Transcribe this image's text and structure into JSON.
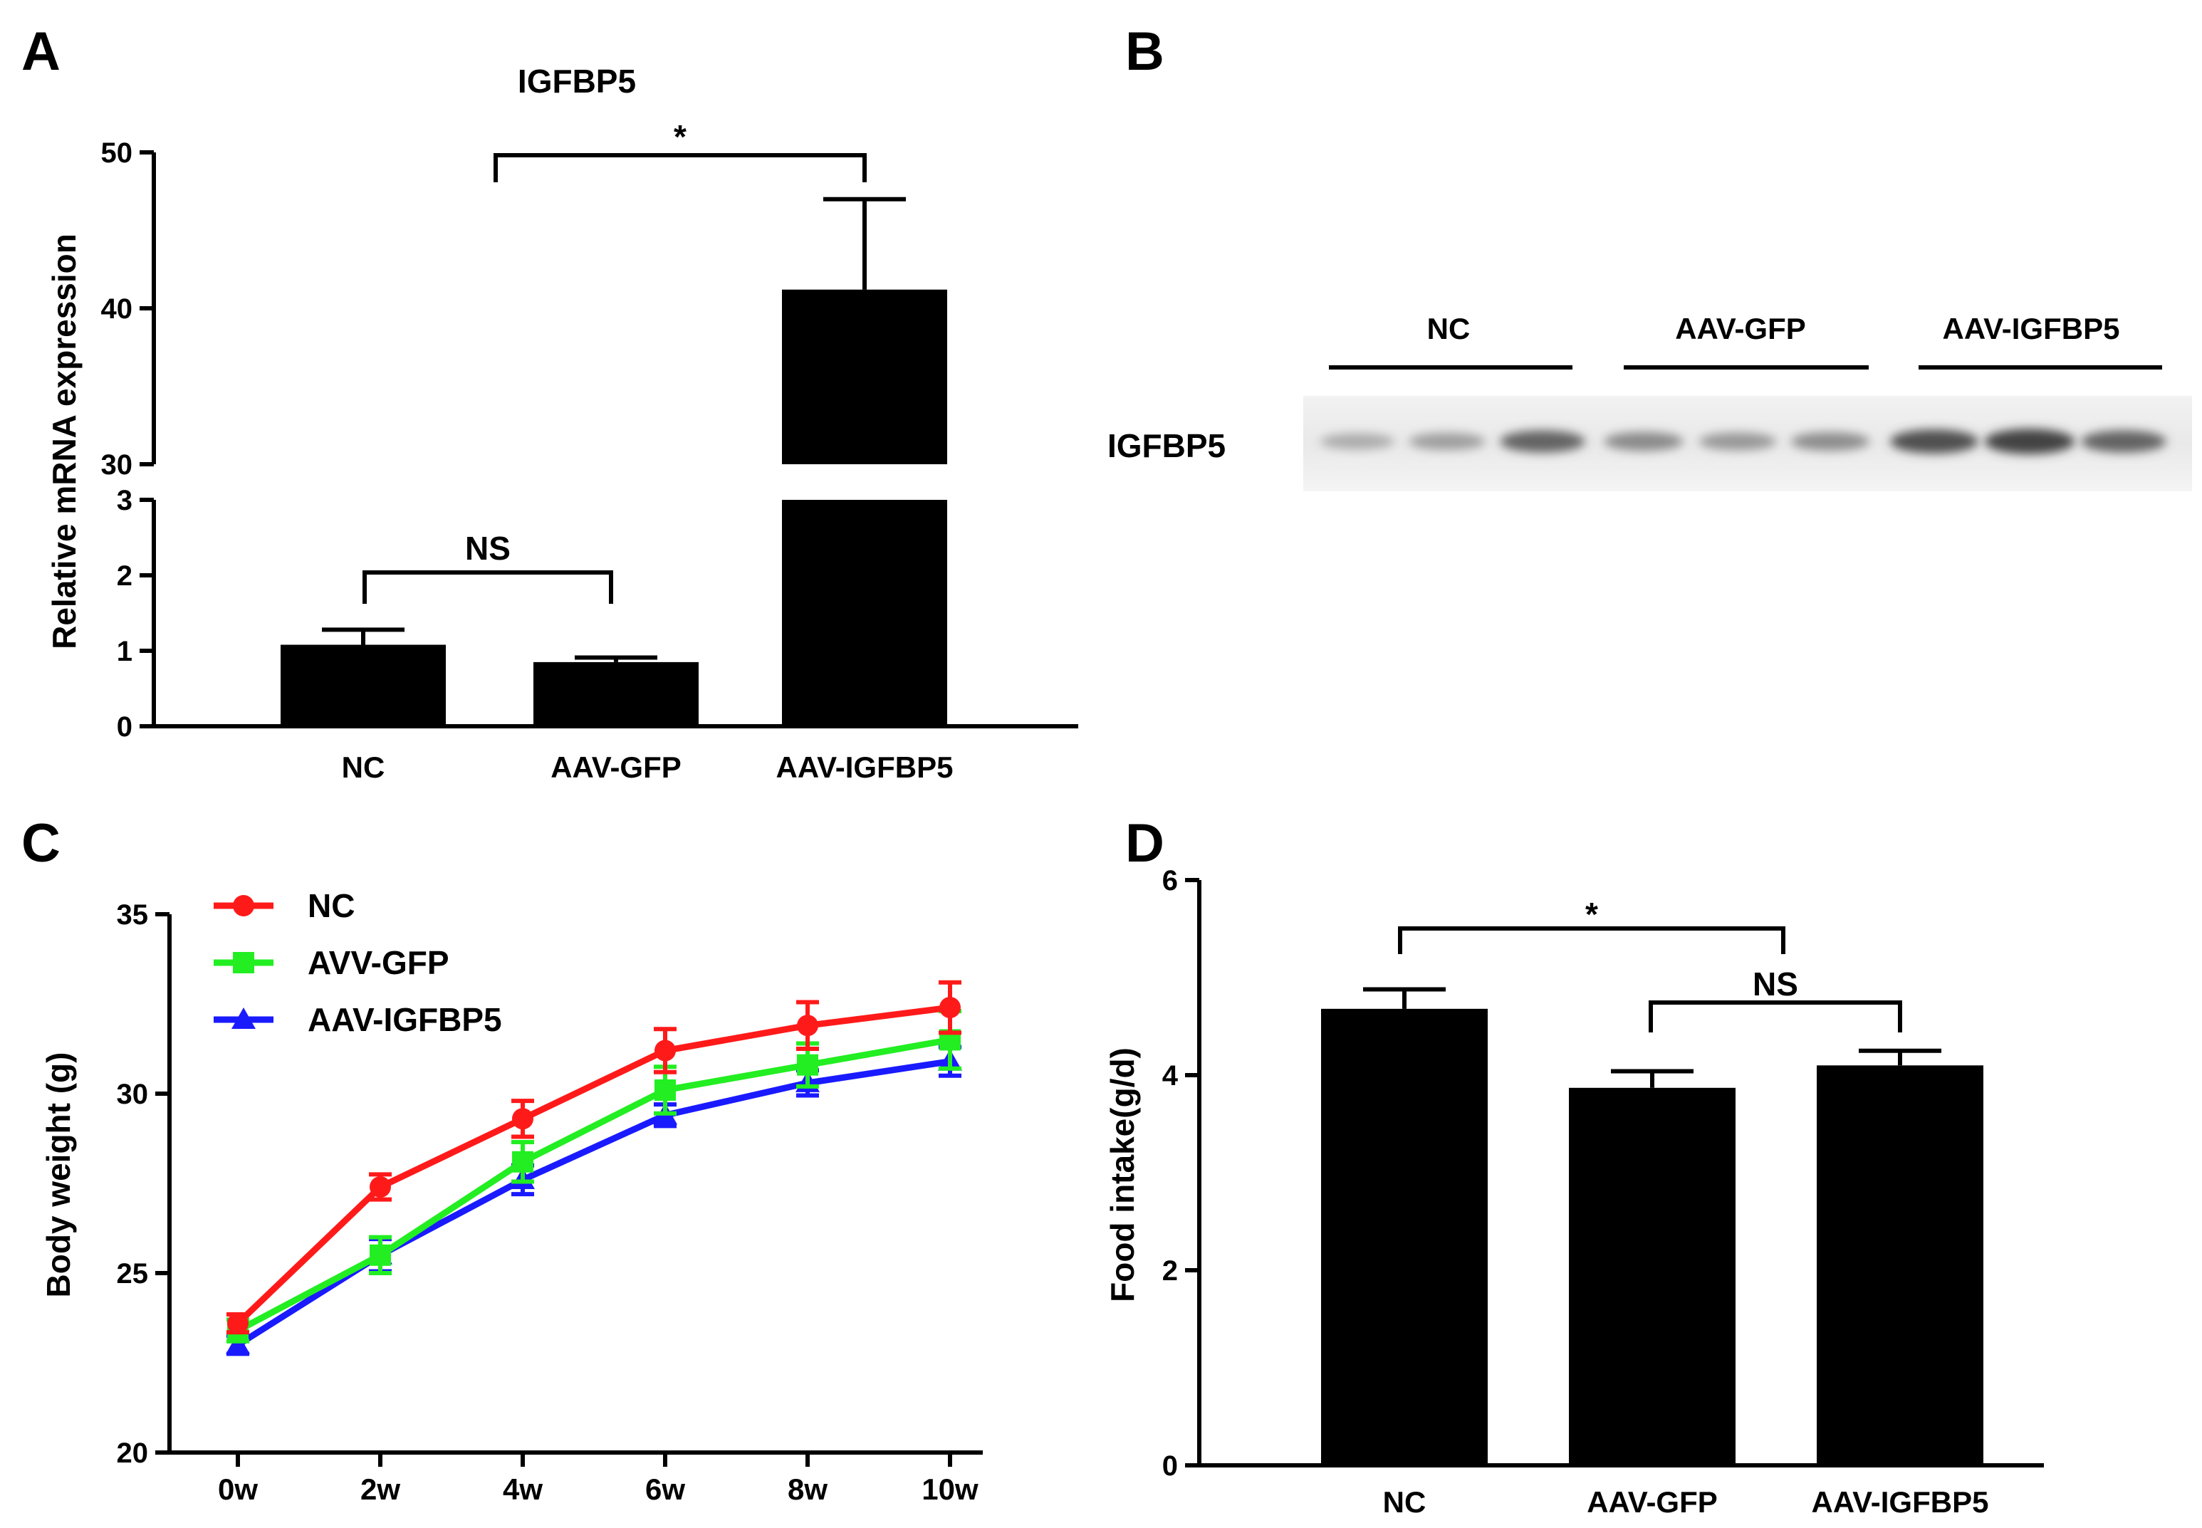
{
  "panels": {
    "A": "A",
    "B": "B",
    "C": "C",
    "D": "D"
  },
  "chart_data": [
    {
      "id": "A",
      "type": "bar",
      "title": "IGFBP5",
      "xlabel": "",
      "ylabel": "Relative mRNA expression",
      "categories": [
        "NC",
        "AAV-GFP",
        "AAV-IGFBP5"
      ],
      "values": [
        1.08,
        0.85,
        41.2
      ],
      "errors": [
        0.2,
        0.06,
        5.8
      ],
      "axis_break": {
        "lower": [
          0,
          3
        ],
        "upper": [
          30,
          50
        ]
      },
      "yticks_lower": [
        0,
        1,
        2,
        3
      ],
      "yticks_upper": [
        30,
        40,
        50
      ],
      "comparisons": [
        {
          "from": 0,
          "to": 1,
          "label": "NS"
        },
        {
          "from": 1,
          "to": 2,
          "label": "*"
        }
      ],
      "bar_color": "#000000"
    },
    {
      "id": "B",
      "type": "western-blot",
      "row_label": "IGFBP5",
      "groups": [
        "NC",
        "AAV-GFP",
        "AAV-IGFBP5"
      ],
      "band_intensity": [
        0.15,
        0.25,
        0.7,
        0.4,
        0.3,
        0.38,
        0.85,
        0.95,
        0.7
      ]
    },
    {
      "id": "C",
      "type": "line",
      "xlabel": "",
      "ylabel": "Body weight (g)",
      "x": [
        "0w",
        "2w",
        "4w",
        "6w",
        "8w",
        "10w"
      ],
      "ylim": [
        20,
        35
      ],
      "yticks": [
        20,
        25,
        30,
        35
      ],
      "series": [
        {
          "name": "NC",
          "color": "#ff1a1a",
          "marker": "circle",
          "values": [
            23.6,
            27.4,
            29.3,
            31.2,
            31.9,
            32.4
          ],
          "errors": [
            0.25,
            0.35,
            0.5,
            0.6,
            0.65,
            0.7
          ]
        },
        {
          "name": "AVV-GFP",
          "color": "#22ee22",
          "marker": "square",
          "values": [
            23.4,
            25.5,
            28.1,
            30.1,
            30.8,
            31.5
          ],
          "errors": [
            0.3,
            0.5,
            0.55,
            0.65,
            0.6,
            0.8
          ]
        },
        {
          "name": "AAV-IGFBP5",
          "color": "#1a1aff",
          "marker": "triangle",
          "values": [
            23.0,
            25.5,
            27.6,
            29.4,
            30.3,
            30.9
          ],
          "errors": [
            0.25,
            0.45,
            0.4,
            0.3,
            0.35,
            0.4
          ]
        }
      ],
      "legend": "top-left"
    },
    {
      "id": "D",
      "type": "bar",
      "xlabel": "",
      "ylabel": "Food intake(g/d)",
      "categories": [
        "NC",
        "AAV-GFP",
        "AAV-IGFBP5"
      ],
      "values": [
        4.68,
        3.87,
        4.1
      ],
      "errors": [
        0.2,
        0.17,
        0.15
      ],
      "ylim": [
        0,
        6
      ],
      "yticks": [
        0,
        2,
        4,
        6
      ],
      "comparisons": [
        {
          "from": 0,
          "to": 1,
          "label": "*"
        },
        {
          "from": 1,
          "to": 2,
          "label": "NS"
        }
      ],
      "bar_color": "#000000"
    }
  ]
}
